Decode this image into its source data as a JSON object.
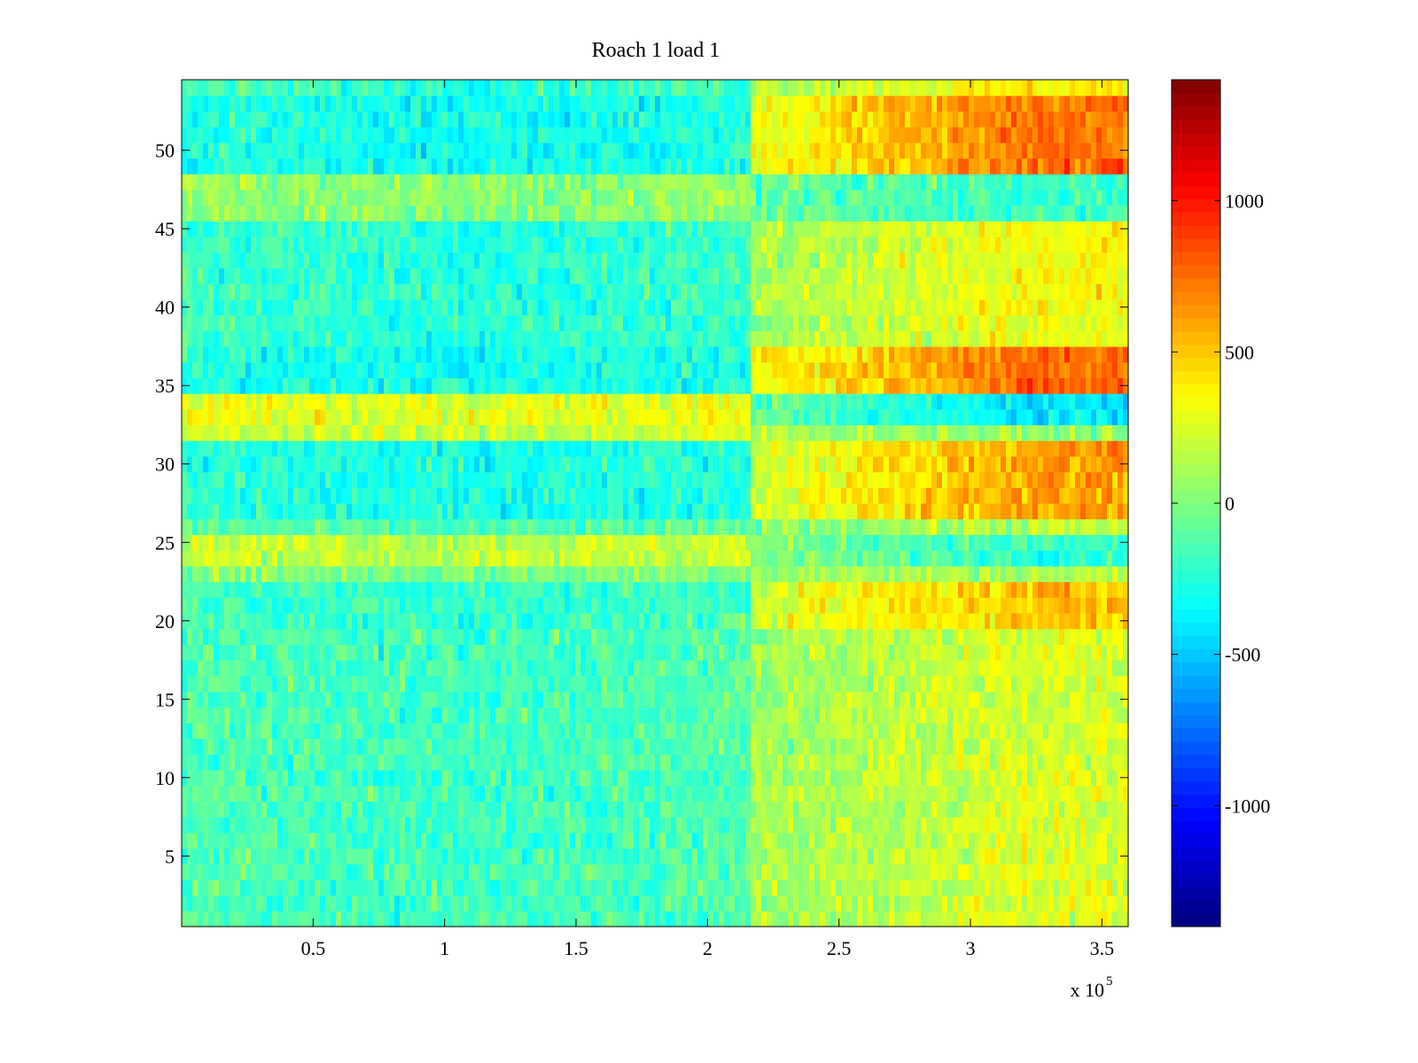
{
  "chart_data": {
    "type": "heatmap",
    "title": "Roach 1 load 1",
    "xlabel": "",
    "ylabel": "",
    "x_range": [
      0,
      360000
    ],
    "y_range": [
      0.5,
      54.5
    ],
    "rows": 54,
    "x_ticks": [
      50000,
      100000,
      150000,
      200000,
      250000,
      300000,
      350000
    ],
    "x_tick_labels": [
      "0.5",
      "1",
      "1.5",
      "2",
      "2.5",
      "3",
      "3.5"
    ],
    "x_multiplier_prefix": "x 10",
    "x_multiplier_exponent": "5",
    "y_ticks": [
      5,
      10,
      15,
      20,
      25,
      30,
      35,
      40,
      45,
      50
    ],
    "y_tick_labels": [
      "5",
      "10",
      "15",
      "20",
      "25",
      "30",
      "35",
      "40",
      "45",
      "50"
    ],
    "colorbar": {
      "colormap": "jet",
      "range": [
        -1400,
        1400
      ],
      "ticks": [
        -1000,
        -500,
        0,
        500,
        1000
      ],
      "tick_labels": [
        "-1000",
        "-500",
        "0",
        "500",
        "1000"
      ]
    },
    "change_point_x": 217000,
    "row_groups": [
      {
        "rows": [
          1,
          22
        ],
        "mean_before": -120,
        "mean_after": 250,
        "note": "gradual warming toward right"
      },
      {
        "rows": [
          20,
          22
        ],
        "mean_before": -150,
        "mean_after": 520
      },
      {
        "rows": [
          23,
          23
        ],
        "mean_before": 50,
        "mean_after": 130
      },
      {
        "rows": [
          24,
          25
        ],
        "mean_before": 230,
        "mean_after": -200
      },
      {
        "rows": [
          26,
          26
        ],
        "mean_before": -100,
        "mean_after": 150
      },
      {
        "rows": [
          27,
          31
        ],
        "mean_before": -230,
        "mean_after": 620
      },
      {
        "rows": [
          32,
          32
        ],
        "mean_before": 250,
        "mean_after": 50
      },
      {
        "rows": [
          33,
          34
        ],
        "mean_before": 320,
        "mean_after": -420
      },
      {
        "rows": [
          35,
          37
        ],
        "mean_before": -250,
        "mean_after": 780
      },
      {
        "rows": [
          38,
          45
        ],
        "mean_before": -180,
        "mean_after": 330
      },
      {
        "rows": [
          46,
          48
        ],
        "mean_before": 80,
        "mean_after": -200
      },
      {
        "rows": [
          49,
          53
        ],
        "mean_before": -250,
        "mean_after": 750
      },
      {
        "rows": [
          54,
          54
        ],
        "mean_before": -150,
        "mean_after": 400
      }
    ]
  }
}
